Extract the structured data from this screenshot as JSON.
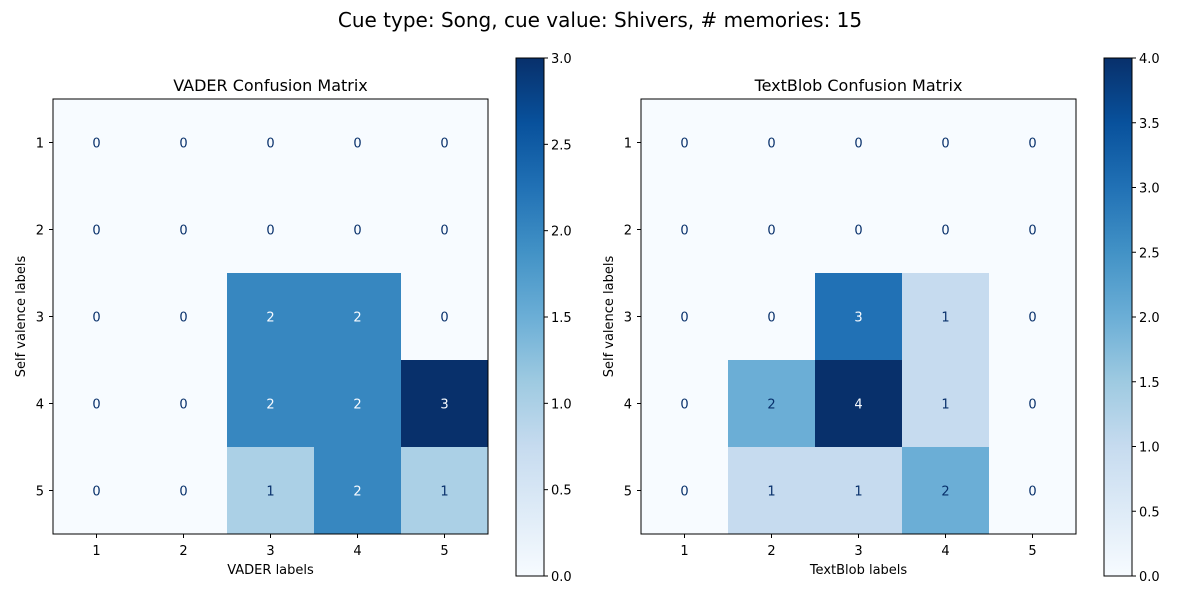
{
  "figure": {
    "suptitle": "Cue type: Song, cue value: Shivers, # memories: 15"
  },
  "chart_data": [
    {
      "type": "heatmap",
      "title": "VADER Confusion Matrix",
      "xlabel": "VADER labels",
      "ylabel": "Self valence labels",
      "x_categories": [
        "1",
        "2",
        "3",
        "4",
        "5"
      ],
      "y_categories": [
        "1",
        "2",
        "3",
        "4",
        "5"
      ],
      "values": [
        [
          0,
          0,
          0,
          0,
          0
        ],
        [
          0,
          0,
          0,
          0,
          0
        ],
        [
          0,
          0,
          2,
          2,
          0
        ],
        [
          0,
          0,
          2,
          2,
          3
        ],
        [
          0,
          0,
          1,
          2,
          1
        ]
      ],
      "colorbar": {
        "min": 0,
        "max": 3,
        "ticks": [
          "0.0",
          "0.5",
          "1.0",
          "1.5",
          "2.0",
          "2.5",
          "3.0"
        ],
        "tick_values": [
          0,
          0.5,
          1,
          1.5,
          2,
          2.5,
          3
        ]
      },
      "colormap": "Blues"
    },
    {
      "type": "heatmap",
      "title": "TextBlob Confusion Matrix",
      "xlabel": "TextBlob labels",
      "ylabel": "Self valence labels",
      "x_categories": [
        "1",
        "2",
        "3",
        "4",
        "5"
      ],
      "y_categories": [
        "1",
        "2",
        "3",
        "4",
        "5"
      ],
      "values": [
        [
          0,
          0,
          0,
          0,
          0
        ],
        [
          0,
          0,
          0,
          0,
          0
        ],
        [
          0,
          0,
          3,
          1,
          0
        ],
        [
          0,
          2,
          4,
          1,
          0
        ],
        [
          0,
          1,
          1,
          2,
          0
        ]
      ],
      "colorbar": {
        "min": 0,
        "max": 4,
        "ticks": [
          "0.0",
          "0.5",
          "1.0",
          "1.5",
          "2.0",
          "2.5",
          "3.0",
          "3.5",
          "4.0"
        ],
        "tick_values": [
          0,
          0.5,
          1,
          1.5,
          2,
          2.5,
          3,
          3.5,
          4
        ]
      },
      "colormap": "Blues"
    }
  ]
}
